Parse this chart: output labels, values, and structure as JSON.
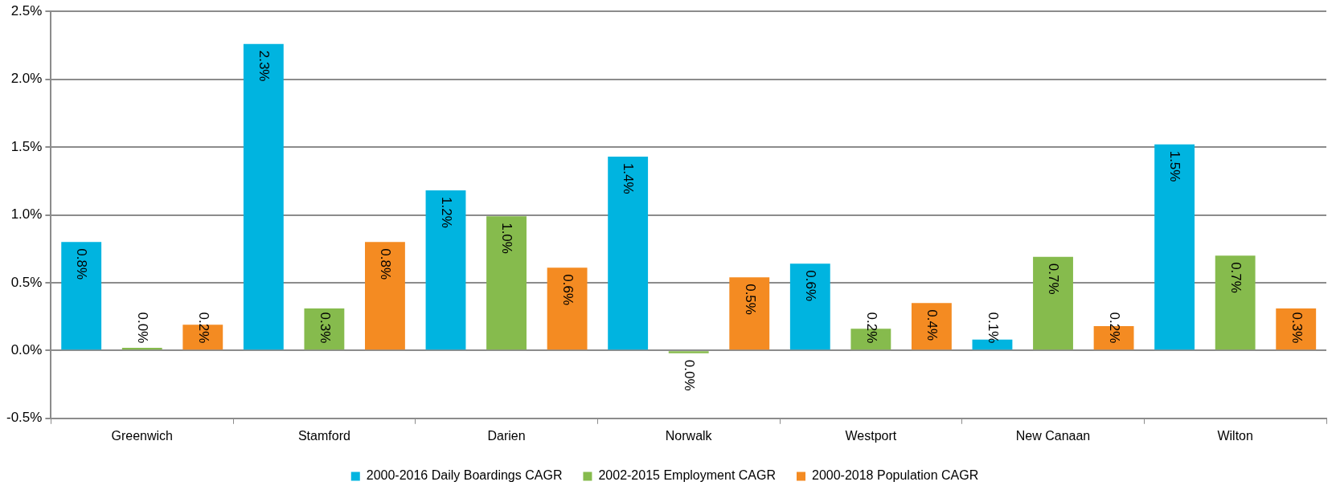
{
  "chart_data": {
    "type": "bar",
    "categories": [
      "Greenwich",
      "Stamford",
      "Darien",
      "Norwalk",
      "Westport",
      "New Canaan",
      "Wilton"
    ],
    "series": [
      {
        "name": "2000-2016 Daily Boardings CAGR",
        "color": "#00b4e0",
        "values": [
          0.8,
          2.26,
          1.18,
          1.43,
          0.64,
          0.08,
          1.52
        ],
        "value_labels": [
          "0.8%",
          "2.3%",
          "1.2%",
          "1.4%",
          "0.6%",
          "0.1%",
          "1.5%"
        ]
      },
      {
        "name": "2002-2015 Employment CAGR",
        "color": "#86bb4d",
        "values": [
          0.02,
          0.31,
          0.99,
          -0.02,
          0.16,
          0.69,
          0.7
        ],
        "value_labels": [
          "0.0%",
          "0.3%",
          "1.0%",
          "0.0%",
          "0.2%",
          "0.7%",
          "0.7%"
        ]
      },
      {
        "name": "2000-2018 Population CAGR",
        "color": "#f48b22",
        "values": [
          0.19,
          0.8,
          0.61,
          0.54,
          0.35,
          0.18,
          0.31
        ],
        "value_labels": [
          "0.2%",
          "0.8%",
          "0.6%",
          "0.5%",
          "0.4%",
          "0.2%",
          "0.3%"
        ]
      }
    ],
    "ylim": [
      -0.5,
      2.5
    ],
    "yticks": [
      {
        "value": -0.5,
        "label": "-0.5%"
      },
      {
        "value": 0,
        "label": "0.0%"
      },
      {
        "value": 0.5,
        "label": "0.5%"
      },
      {
        "value": 1,
        "label": "1.0%"
      },
      {
        "value": 1.5,
        "label": "1.5%"
      },
      {
        "value": 2,
        "label": "2.0%"
      },
      {
        "value": 2.5,
        "label": "2.5%"
      }
    ],
    "grid": "y",
    "legend": "bottom"
  }
}
